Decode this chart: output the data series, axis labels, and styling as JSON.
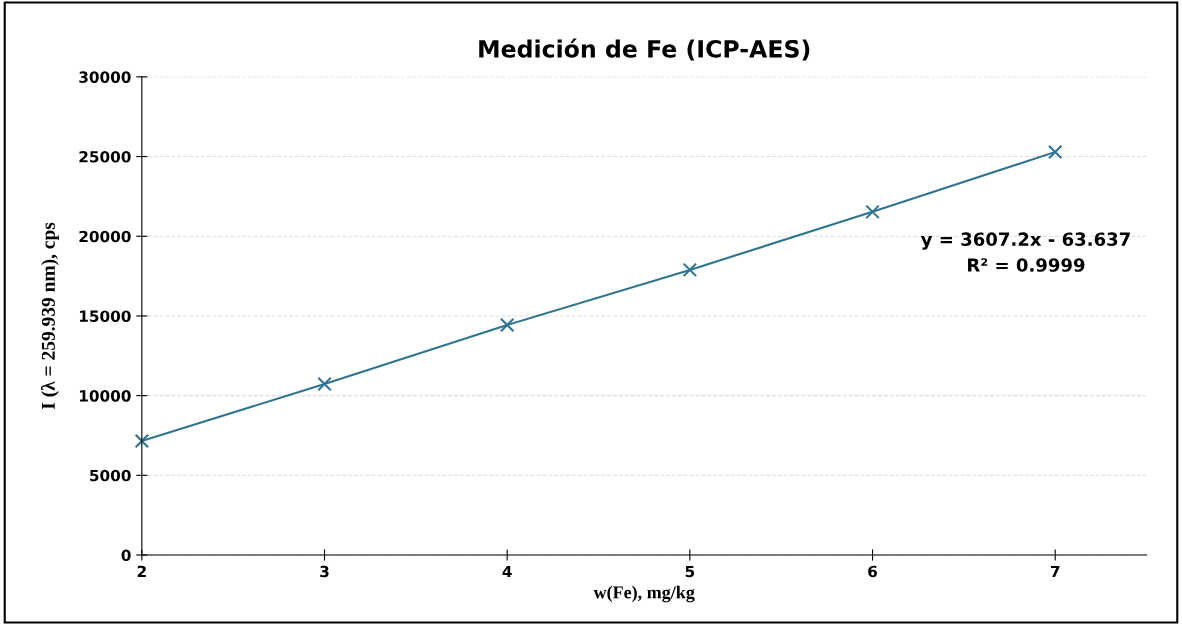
{
  "chart_data": {
    "type": "line",
    "title": "Medición de Fe (ICP-AES)",
    "xlabel": "w(Fe), mg/kg",
    "ylabel": "I (λ = 259.939 nm), cps",
    "x": [
      2,
      3,
      4,
      5,
      6,
      7
    ],
    "series": [
      {
        "color": "#2e7391",
        "values": [
          7150,
          10730,
          14430,
          17890,
          21530,
          25290
        ]
      }
    ],
    "marker": "cross",
    "line_style": "solid",
    "xlim": [
      2,
      7.5
    ],
    "xticks": [
      2,
      3,
      4,
      5,
      6,
      7
    ],
    "ylim": [
      0,
      30000
    ],
    "yticks": [
      0,
      5000,
      10000,
      15000,
      20000,
      25000,
      30000
    ],
    "grid": "y",
    "legend": false,
    "annotations": [
      "y = 3607.2x - 63.637\nR² = 0.9999"
    ]
  }
}
